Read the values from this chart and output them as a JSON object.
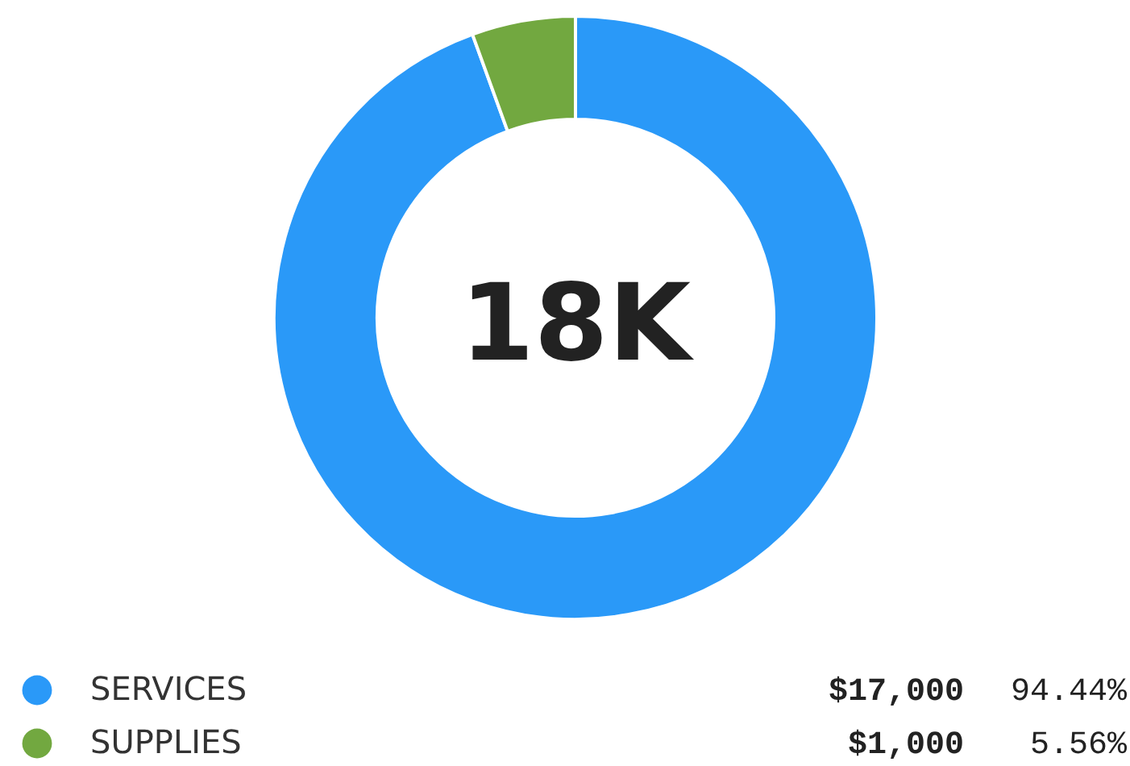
{
  "chart_data": {
    "type": "donut",
    "categories": [
      "SERVICES",
      "SUPPLIES"
    ],
    "values": [
      17000,
      1000
    ],
    "colors": [
      "#2a99f8",
      "#72a840"
    ],
    "value_labels": [
      "$17,000",
      "$1,000"
    ],
    "annotations": [
      "18K",
      "94.44%",
      "5.56%"
    ],
    "legend": "bottom"
  }
}
